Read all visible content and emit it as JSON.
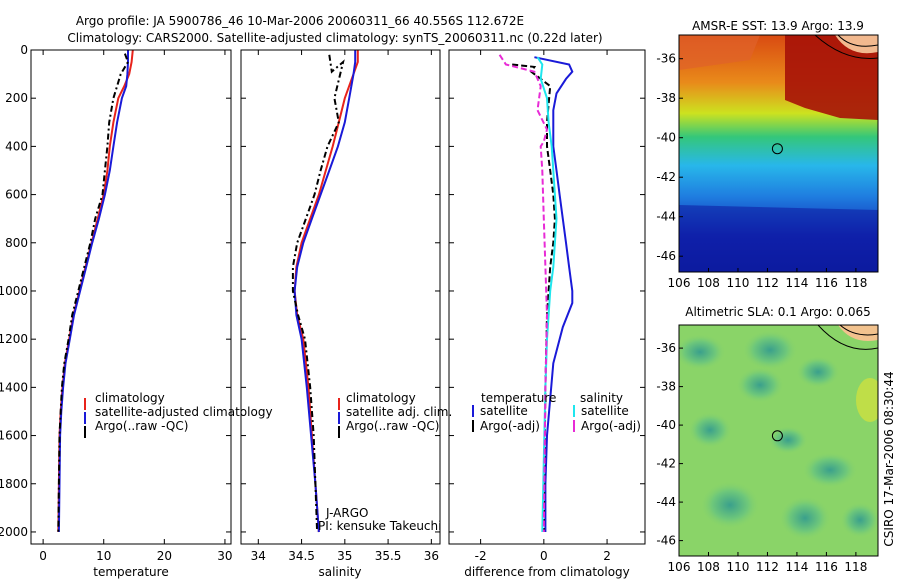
{
  "header": {
    "line1": "Argo profile: JA 5900786_46 10-Mar-2006 20060311_66 40.556S 112.672E",
    "line2": "Climatology: CARS2000. Satellite-adjusted climatology: synTS_20060311.nc (0.22d later)"
  },
  "side_label": "CSIRO 17-Mar-2006 08:30:44",
  "credit": {
    "line1": "J-ARGO",
    "line2": "PI: kensuke Takeuchi"
  },
  "colors": {
    "climatology": "#e8231b",
    "satellite": "#1a1ad8",
    "argo": "#000000",
    "sal_satellite": "#1fe6ee",
    "sal_argo": "#e82bd6"
  },
  "chart_data": [
    {
      "type": "line",
      "id": "temperature",
      "xlabel": "temperature",
      "ylabel": "",
      "xlim": [
        -2,
        31
      ],
      "ylim": [
        2050,
        0
      ],
      "xticks": [
        0,
        10,
        20,
        30
      ],
      "yticks": [
        0,
        200,
        400,
        600,
        800,
        1000,
        1200,
        1400,
        1600,
        1800,
        2000
      ],
      "legend": [
        "climatology",
        "satellite-adjusted climatology",
        "Argo(..raw -QC)"
      ],
      "series": [
        {
          "name": "climatology",
          "color": "#e8231b",
          "dash": "",
          "x": [
            14.8,
            14.6,
            14.2,
            13.4,
            12.4,
            11.6,
            11.0,
            10.6,
            10.0,
            9.0,
            8.0,
            7.0,
            6.0,
            5.0,
            4.3,
            3.6,
            3.2,
            2.9,
            2.7,
            2.6,
            2.5
          ],
          "y": [
            0,
            50,
            100,
            150,
            200,
            300,
            400,
            500,
            600,
            700,
            800,
            900,
            1000,
            1100,
            1200,
            1300,
            1400,
            1500,
            1600,
            1800,
            2000
          ]
        },
        {
          "name": "satellite-adjusted climatology",
          "color": "#1a1ad8",
          "dash": "",
          "x": [
            14.0,
            14.0,
            13.9,
            13.7,
            13.0,
            12.2,
            11.6,
            11.0,
            10.2,
            9.2,
            8.1,
            7.1,
            6.1,
            5.1,
            4.4,
            3.7,
            3.3,
            3.0,
            2.8,
            2.7,
            2.6
          ],
          "y": [
            0,
            50,
            100,
            150,
            200,
            300,
            400,
            500,
            600,
            700,
            800,
            900,
            1000,
            1100,
            1200,
            1300,
            1400,
            1500,
            1600,
            1800,
            2000
          ]
        },
        {
          "name": "Argo(..raw -QC)",
          "color": "#000000",
          "dash": "6,3,2,3",
          "x": [
            13.5,
            14.0,
            12.8,
            12.2,
            11.6,
            10.9,
            10.6,
            10.2,
            9.8,
            8.6,
            7.8,
            6.8,
            5.8,
            4.8,
            4.2,
            3.5,
            3.1,
            2.9,
            2.7,
            2.6,
            2.5
          ],
          "y": [
            15,
            50,
            100,
            150,
            200,
            300,
            400,
            500,
            600,
            700,
            800,
            900,
            1000,
            1100,
            1200,
            1300,
            1400,
            1500,
            1600,
            1800,
            2000
          ]
        }
      ]
    },
    {
      "type": "line",
      "id": "salinity",
      "xlabel": "salinity",
      "ylabel": "",
      "xlim": [
        33.8,
        36.1
      ],
      "ylim": [
        2050,
        0
      ],
      "xticks": [
        34,
        34.5,
        35,
        35.5,
        36
      ],
      "yticks": [],
      "legend": [
        "climatology",
        "satellite adj. clim.",
        "Argo(..raw -QC)"
      ],
      "series": [
        {
          "name": "climatology",
          "color": "#e8231b",
          "dash": "",
          "x": [
            35.15,
            35.15,
            35.1,
            35.0,
            34.93,
            34.86,
            34.78,
            34.7,
            34.6,
            34.5,
            34.44,
            34.42,
            34.45,
            34.52,
            34.58,
            34.62,
            34.66,
            34.7
          ],
          "y": [
            0,
            50,
            100,
            200,
            300,
            400,
            500,
            600,
            700,
            800,
            900,
            1000,
            1100,
            1200,
            1400,
            1600,
            1800,
            2000
          ]
        },
        {
          "name": "satellite adj. clim.",
          "color": "#1a1ad8",
          "dash": "",
          "x": [
            35.12,
            35.12,
            35.1,
            35.05,
            35.0,
            34.92,
            34.82,
            34.72,
            34.62,
            34.52,
            34.45,
            34.42,
            34.44,
            34.5,
            34.56,
            34.61,
            34.66,
            34.7
          ],
          "y": [
            0,
            50,
            100,
            200,
            300,
            400,
            500,
            600,
            700,
            800,
            900,
            1000,
            1100,
            1200,
            1400,
            1600,
            1800,
            2000
          ]
        },
        {
          "name": "Argo(..raw -QC)",
          "color": "#000000",
          "dash": "6,3,2,3",
          "x": [
            34.82,
            34.85,
            34.98,
            34.88,
            34.93,
            34.8,
            34.72,
            34.65,
            34.55,
            34.45,
            34.4,
            34.4,
            34.46,
            34.54,
            34.6,
            34.64,
            34.68
          ],
          "y": [
            20,
            90,
            50,
            200,
            300,
            400,
            500,
            600,
            700,
            800,
            900,
            1000,
            1100,
            1200,
            1400,
            1600,
            2000
          ]
        }
      ]
    },
    {
      "type": "line",
      "id": "difference",
      "xlabel": "difference from climatology",
      "ylabel": "",
      "xlim": [
        -3,
        3.2
      ],
      "ylim": [
        2050,
        0
      ],
      "xticks": [
        -2,
        0,
        2
      ],
      "yticks": [],
      "legend_groups": [
        {
          "title": "temperature",
          "entries": [
            "satellite",
            "Argo(-adj)"
          ]
        },
        {
          "title": "salinity",
          "entries": [
            "satellite",
            "Argo(-adj)"
          ]
        }
      ],
      "series": [
        {
          "name": "temperature satellite",
          "color": "#1a1ad8",
          "dash": "",
          "x": [
            -0.3,
            0.8,
            0.9,
            0.7,
            0.4,
            0.3,
            0.3,
            0.4,
            0.5,
            0.6,
            0.7,
            0.8,
            0.9,
            0.9,
            0.6,
            0.3,
            0.1,
            0.05,
            0.05
          ],
          "y": [
            30,
            60,
            90,
            120,
            180,
            250,
            400,
            500,
            600,
            700,
            800,
            900,
            1000,
            1050,
            1150,
            1300,
            1600,
            1800,
            2000
          ]
        },
        {
          "name": "temperature Argo(-adj)",
          "color": "#000000",
          "dash": "6,3",
          "x": [
            -1.0,
            -0.3,
            -0.4,
            0.2,
            0.1,
            0.1,
            0.2,
            0.3,
            0.35,
            0.3,
            0.2,
            0.1,
            0.05,
            0.0
          ],
          "y": [
            60,
            70,
            90,
            150,
            300,
            400,
            500,
            600,
            700,
            800,
            900,
            1100,
            1400,
            2000
          ]
        },
        {
          "name": "salinity satellite",
          "color": "#1fe6ee",
          "dash": "",
          "x": [
            -0.2,
            -0.05,
            -0.1,
            0.1,
            0.15,
            0.25,
            0.3,
            0.35,
            0.4,
            0.35,
            0.3,
            0.2,
            0.1,
            0.05,
            0.0,
            -0.05
          ],
          "y": [
            30,
            60,
            120,
            200,
            300,
            400,
            500,
            600,
            700,
            800,
            900,
            1000,
            1200,
            1400,
            1700,
            2000
          ]
        },
        {
          "name": "salinity Argo(-adj)",
          "color": "#e82bd6",
          "dash": "6,3",
          "x": [
            -1.4,
            -1.2,
            -0.3,
            -0.1,
            -0.2,
            0.1,
            0.0,
            -0.1,
            -0.05,
            0.0,
            0.05,
            0.1,
            0.05,
            0.0
          ],
          "y": [
            20,
            60,
            90,
            150,
            250,
            330,
            380,
            400,
            500,
            700,
            900,
            1100,
            1400,
            2000
          ]
        }
      ]
    },
    {
      "type": "heatmap",
      "id": "sst",
      "title": "AMSR-E SST: 13.9 Argo: 13.9",
      "xlim": [
        106,
        119.5
      ],
      "ylim": [
        -46.8,
        -34.8
      ],
      "xticks": [
        106,
        108,
        110,
        112,
        114,
        116,
        118
      ],
      "yticks": [
        -36,
        -38,
        -40,
        -42,
        -44,
        -46
      ],
      "marker": {
        "lon": 112.672,
        "lat": -40.556
      }
    },
    {
      "type": "heatmap",
      "id": "sla",
      "title": "Altimetric SLA: 0.1 Argo: 0.065",
      "xlim": [
        106,
        119.5
      ],
      "ylim": [
        -46.8,
        -34.8
      ],
      "xticks": [
        106,
        108,
        110,
        112,
        114,
        116,
        118
      ],
      "yticks": [
        -36,
        -38,
        -40,
        -42,
        -44,
        -46
      ],
      "marker": {
        "lon": 112.672,
        "lat": -40.556
      }
    }
  ]
}
